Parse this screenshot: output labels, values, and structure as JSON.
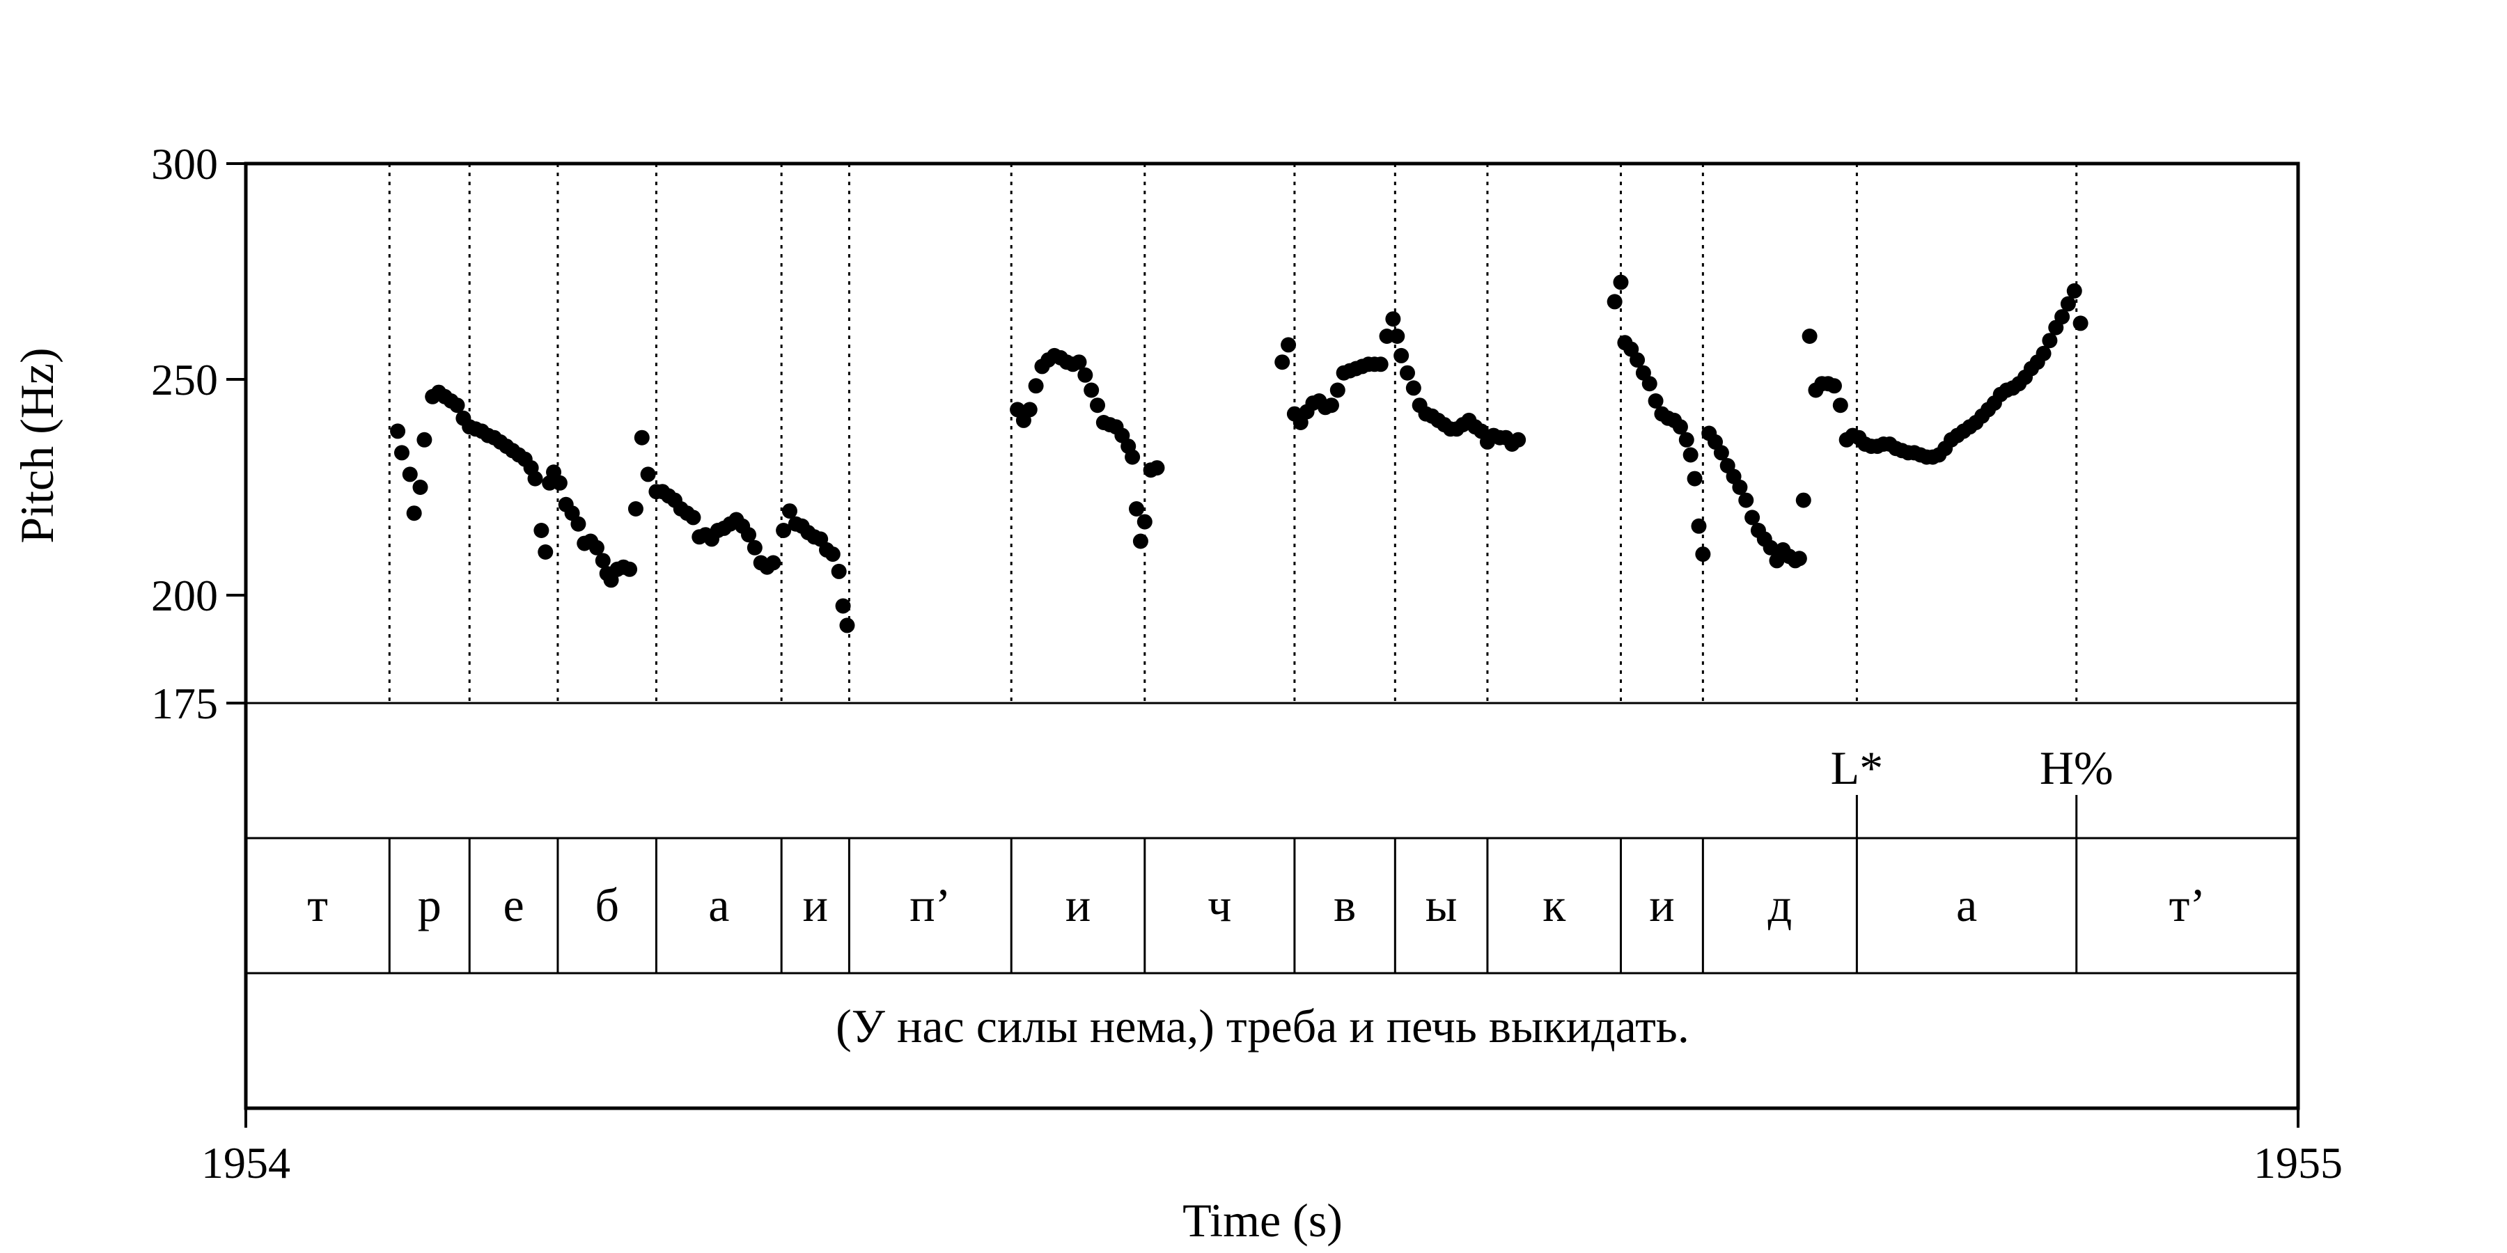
{
  "chart_data": {
    "type": "scatter",
    "xlabel": "Time (s)",
    "ylabel": "Pitch (Hz)",
    "xlim": [
      1954,
      1955
    ],
    "ylim": [
      175,
      300
    ],
    "x_ticks": [
      {
        "value": 1954,
        "label": "1954"
      },
      {
        "value": 1955,
        "label": "1955"
      }
    ],
    "y_ticks": [
      {
        "value": 300,
        "label": "300"
      },
      {
        "value": 250,
        "label": "250"
      },
      {
        "value": 200,
        "label": "200"
      },
      {
        "value": 175,
        "label": "175"
      }
    ],
    "boundaries": [
      1954.07,
      1954.109,
      1954.152,
      1954.2,
      1954.261,
      1954.294,
      1954.373,
      1954.438,
      1954.511,
      1954.56,
      1954.605,
      1954.67,
      1954.71,
      1954.785,
      1954.892
    ],
    "tones": [
      {
        "time": 1954.785,
        "label": "L*"
      },
      {
        "time": 1954.892,
        "label": "H%"
      }
    ],
    "segments": [
      {
        "start": 1954.0,
        "end": 1954.07,
        "label": "т"
      },
      {
        "start": 1954.07,
        "end": 1954.109,
        "label": "р"
      },
      {
        "start": 1954.109,
        "end": 1954.152,
        "label": "е"
      },
      {
        "start": 1954.152,
        "end": 1954.2,
        "label": "б"
      },
      {
        "start": 1954.2,
        "end": 1954.261,
        "label": "а"
      },
      {
        "start": 1954.261,
        "end": 1954.294,
        "label": "и"
      },
      {
        "start": 1954.294,
        "end": 1954.373,
        "label": "п’"
      },
      {
        "start": 1954.373,
        "end": 1954.438,
        "label": "и"
      },
      {
        "start": 1954.438,
        "end": 1954.511,
        "label": "ч"
      },
      {
        "start": 1954.511,
        "end": 1954.56,
        "label": "в"
      },
      {
        "start": 1954.56,
        "end": 1954.605,
        "label": "ы"
      },
      {
        "start": 1954.605,
        "end": 1954.67,
        "label": "к"
      },
      {
        "start": 1954.67,
        "end": 1954.71,
        "label": "и"
      },
      {
        "start": 1954.71,
        "end": 1954.785,
        "label": "д"
      },
      {
        "start": 1954.785,
        "end": 1954.892,
        "label": "а"
      },
      {
        "start": 1954.892,
        "end": 1955.0,
        "label": "т’"
      }
    ],
    "sentence": "(У нас силы нема,) треба и печь выкидать.",
    "points": [
      [
        1954.074,
        238
      ],
      [
        1954.076,
        233
      ],
      [
        1954.08,
        228
      ],
      [
        1954.082,
        219
      ],
      [
        1954.085,
        225
      ],
      [
        1954.087,
        236
      ],
      [
        1954.091,
        246
      ],
      [
        1954.094,
        247
      ],
      [
        1954.097,
        246
      ],
      [
        1954.1,
        245
      ],
      [
        1954.103,
        244
      ],
      [
        1954.106,
        241
      ],
      [
        1954.109,
        239
      ],
      [
        1954.112,
        238.5
      ],
      [
        1954.115,
        238
      ],
      [
        1954.118,
        237
      ],
      [
        1954.121,
        236.5
      ],
      [
        1954.124,
        235.5
      ],
      [
        1954.127,
        234.5
      ],
      [
        1954.13,
        233.5
      ],
      [
        1954.133,
        232.5
      ],
      [
        1954.136,
        231.5
      ],
      [
        1954.139,
        229.5
      ],
      [
        1954.141,
        227
      ],
      [
        1954.144,
        215
      ],
      [
        1954.146,
        210
      ],
      [
        1954.148,
        226
      ],
      [
        1954.15,
        228.5
      ],
      [
        1954.153,
        226
      ],
      [
        1954.156,
        221
      ],
      [
        1954.159,
        219
      ],
      [
        1954.162,
        216.5
      ],
      [
        1954.165,
        212
      ],
      [
        1954.168,
        212.5
      ],
      [
        1954.171,
        211
      ],
      [
        1954.174,
        208
      ],
      [
        1954.176,
        205
      ],
      [
        1954.178,
        203.5
      ],
      [
        1954.181,
        206
      ],
      [
        1954.184,
        206.5
      ],
      [
        1954.187,
        206
      ],
      [
        1954.19,
        220
      ],
      [
        1954.193,
        236.5
      ],
      [
        1954.196,
        228
      ],
      [
        1954.2,
        224
      ],
      [
        1954.203,
        224
      ],
      [
        1954.206,
        223
      ],
      [
        1954.209,
        222
      ],
      [
        1954.212,
        220
      ],
      [
        1954.215,
        219
      ],
      [
        1954.218,
        218
      ],
      [
        1954.221,
        213.5
      ],
      [
        1954.224,
        214
      ],
      [
        1954.227,
        213
      ],
      [
        1954.23,
        215
      ],
      [
        1954.233,
        215.5
      ],
      [
        1954.236,
        216.5
      ],
      [
        1954.239,
        217.5
      ],
      [
        1954.242,
        216
      ],
      [
        1954.245,
        214
      ],
      [
        1954.248,
        211
      ],
      [
        1954.251,
        207.5
      ],
      [
        1954.254,
        206.5
      ],
      [
        1954.257,
        207.5
      ],
      [
        1954.262,
        215
      ],
      [
        1954.265,
        219.5
      ],
      [
        1954.268,
        216.5
      ],
      [
        1954.271,
        216
      ],
      [
        1954.274,
        214.5
      ],
      [
        1954.277,
        213.5
      ],
      [
        1954.28,
        213
      ],
      [
        1954.283,
        210.5
      ],
      [
        1954.286,
        209.5
      ],
      [
        1954.289,
        205.5
      ],
      [
        1954.291,
        197.5
      ],
      [
        1954.293,
        193
      ],
      [
        1954.376,
        243
      ],
      [
        1954.379,
        240.5
      ],
      [
        1954.382,
        243
      ],
      [
        1954.385,
        248.5
      ],
      [
        1954.388,
        253
      ],
      [
        1954.391,
        254.5
      ],
      [
        1954.394,
        255.5
      ],
      [
        1954.397,
        255
      ],
      [
        1954.4,
        254
      ],
      [
        1954.403,
        253.5
      ],
      [
        1954.406,
        254
      ],
      [
        1954.409,
        251
      ],
      [
        1954.412,
        247.5
      ],
      [
        1954.415,
        244
      ],
      [
        1954.418,
        240
      ],
      [
        1954.421,
        239.5
      ],
      [
        1954.424,
        239
      ],
      [
        1954.427,
        237
      ],
      [
        1954.43,
        234.5
      ],
      [
        1954.432,
        232
      ],
      [
        1954.434,
        220
      ],
      [
        1954.436,
        212.5
      ],
      [
        1954.438,
        217
      ],
      [
        1954.441,
        229
      ],
      [
        1954.444,
        229.5
      ],
      [
        1954.505,
        254
      ],
      [
        1954.508,
        258
      ],
      [
        1954.511,
        242
      ],
      [
        1954.514,
        240
      ],
      [
        1954.517,
        242.5
      ],
      [
        1954.52,
        244.5
      ],
      [
        1954.523,
        245
      ],
      [
        1954.526,
        243.5
      ],
      [
        1954.529,
        244
      ],
      [
        1954.532,
        247.5
      ],
      [
        1954.535,
        251.5
      ],
      [
        1954.538,
        252
      ],
      [
        1954.541,
        252.5
      ],
      [
        1954.544,
        253
      ],
      [
        1954.547,
        253.5
      ],
      [
        1954.55,
        253.5
      ],
      [
        1954.553,
        253.5
      ],
      [
        1954.556,
        260
      ],
      [
        1954.559,
        264
      ],
      [
        1954.561,
        260
      ],
      [
        1954.563,
        255.5
      ],
      [
        1954.566,
        251.5
      ],
      [
        1954.569,
        248
      ],
      [
        1954.572,
        244
      ],
      [
        1954.575,
        242
      ],
      [
        1954.578,
        241.5
      ],
      [
        1954.581,
        240.5
      ],
      [
        1954.584,
        239.5
      ],
      [
        1954.587,
        238.5
      ],
      [
        1954.59,
        238.5
      ],
      [
        1954.593,
        239.5
      ],
      [
        1954.596,
        240.5
      ],
      [
        1954.599,
        239
      ],
      [
        1954.602,
        238
      ],
      [
        1954.605,
        235.5
      ],
      [
        1954.608,
        237
      ],
      [
        1954.611,
        236.5
      ],
      [
        1954.614,
        236.5
      ],
      [
        1954.617,
        235
      ],
      [
        1954.62,
        236
      ],
      [
        1954.667,
        268
      ],
      [
        1954.67,
        272.5
      ],
      [
        1954.672,
        258.5
      ],
      [
        1954.675,
        257
      ],
      [
        1954.678,
        254.5
      ],
      [
        1954.681,
        251.5
      ],
      [
        1954.684,
        249
      ],
      [
        1954.687,
        245
      ],
      [
        1954.69,
        242
      ],
      [
        1954.693,
        241
      ],
      [
        1954.696,
        240.5
      ],
      [
        1954.699,
        239
      ],
      [
        1954.702,
        236
      ],
      [
        1954.704,
        232.5
      ],
      [
        1954.706,
        227
      ],
      [
        1954.708,
        216
      ],
      [
        1954.71,
        209.5
      ],
      [
        1954.713,
        237.5
      ],
      [
        1954.716,
        235.5
      ],
      [
        1954.719,
        233
      ],
      [
        1954.722,
        230
      ],
      [
        1954.725,
        227.5
      ],
      [
        1954.728,
        225
      ],
      [
        1954.731,
        222
      ],
      [
        1954.734,
        218
      ],
      [
        1954.737,
        215
      ],
      [
        1954.74,
        213
      ],
      [
        1954.743,
        211
      ],
      [
        1954.746,
        208
      ],
      [
        1954.749,
        210.5
      ],
      [
        1954.752,
        209
      ],
      [
        1954.755,
        208
      ],
      [
        1954.757,
        208.5
      ],
      [
        1954.759,
        222
      ],
      [
        1954.762,
        260
      ],
      [
        1954.765,
        247.5
      ],
      [
        1954.768,
        249
      ],
      [
        1954.771,
        249
      ],
      [
        1954.774,
        248.5
      ],
      [
        1954.777,
        244
      ],
      [
        1954.78,
        236
      ],
      [
        1954.783,
        237
      ],
      [
        1954.786,
        236.5
      ],
      [
        1954.789,
        235
      ],
      [
        1954.792,
        234.5
      ],
      [
        1954.795,
        234.5
      ],
      [
        1954.798,
        235
      ],
      [
        1954.801,
        235
      ],
      [
        1954.804,
        234
      ],
      [
        1954.807,
        233.5
      ],
      [
        1954.81,
        233
      ],
      [
        1954.813,
        233
      ],
      [
        1954.816,
        232.5
      ],
      [
        1954.819,
        232
      ],
      [
        1954.822,
        232
      ],
      [
        1954.825,
        232.5
      ],
      [
        1954.828,
        234
      ],
      [
        1954.831,
        236
      ],
      [
        1954.834,
        237
      ],
      [
        1954.837,
        238
      ],
      [
        1954.84,
        239
      ],
      [
        1954.843,
        240
      ],
      [
        1954.846,
        241.5
      ],
      [
        1954.849,
        243
      ],
      [
        1954.852,
        244.5
      ],
      [
        1954.855,
        246.5
      ],
      [
        1954.858,
        247.5
      ],
      [
        1954.861,
        248
      ],
      [
        1954.864,
        249
      ],
      [
        1954.867,
        250.5
      ],
      [
        1954.87,
        252.5
      ],
      [
        1954.873,
        254
      ],
      [
        1954.876,
        256
      ],
      [
        1954.879,
        259
      ],
      [
        1954.882,
        262
      ],
      [
        1954.885,
        264.5
      ],
      [
        1954.888,
        267.5
      ],
      [
        1954.891,
        270.5
      ],
      [
        1954.894,
        263
      ]
    ]
  }
}
